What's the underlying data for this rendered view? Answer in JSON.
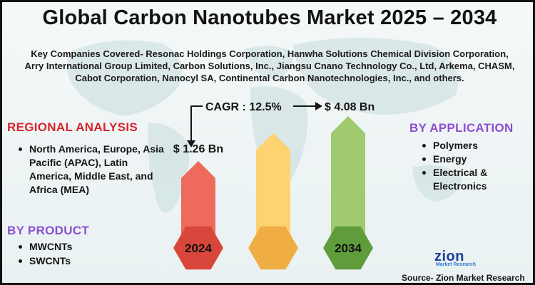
{
  "title": "Global Carbon Nanotubes Market 2025 – 2034",
  "companies": "Key Companies Covered- Resonac Holdings Corporation, Hanwha Solutions Chemical Division Corporation, Arry International Group Limited, Carbon Solutions, Inc., Jiangsu Cnano Technology Co., Ltd, Arkema, CHASM, Cabot Corporation, Nanocyl SA, Continental Carbon Nanotechnologies, Inc., and others.",
  "regional": {
    "heading": "REGIONAL ANALYSIS",
    "items": [
      "North America, Europe, Asia Pacific (APAC), Latin America, Middle East, and Africa (MEA)"
    ]
  },
  "product": {
    "heading": "BY PRODUCT",
    "items": [
      "MWCNTs",
      "SWCNTs"
    ]
  },
  "application": {
    "heading": "BY APPLICATION",
    "items": [
      "Polymers",
      "Energy",
      "Electrical & Electronics"
    ]
  },
  "chart_data": {
    "type": "bar",
    "categories": [
      "2024",
      "",
      "2034"
    ],
    "values": [
      1.26,
      null,
      4.08
    ],
    "value_labels": [
      "$ 1.26 Bn",
      "",
      "$ 4.08 Bn"
    ],
    "cagr_label": "CAGR : 12.5%",
    "unit": "USD Billion",
    "bar_colors": [
      "#ee6a5d",
      "#fdd271",
      "#9fca6d"
    ],
    "hex_colors": [
      "#d9463b",
      "#f0ad43",
      "#5f9c3c"
    ]
  },
  "logo": {
    "big": "zion",
    "small": "Market Research"
  },
  "source": "Source- Zion Market Research",
  "colors": {
    "accent_red": "#d8242c",
    "accent_purple": "#8d4fd0"
  }
}
